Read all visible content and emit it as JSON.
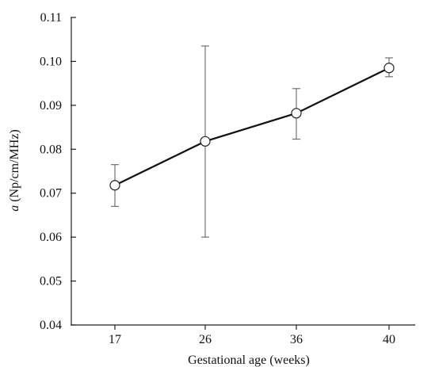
{
  "chart_data": {
    "type": "line",
    "title": "",
    "xlabel": "Gestational age (weeks)",
    "ylabel_italic": "a",
    "ylabel_rest": " (Np/cm/MHz)",
    "categories": [
      "17",
      "26",
      "36",
      "40"
    ],
    "series": [
      {
        "values": [
          0.0718,
          0.0818,
          0.0882,
          0.0985
        ],
        "error_low": [
          0.067,
          0.06,
          0.0823,
          0.0965
        ],
        "error_high": [
          0.0765,
          0.1035,
          0.0938,
          0.1008
        ]
      }
    ],
    "ylim": [
      0.04,
      0.11
    ],
    "yticks": [
      "0.04",
      "0.05",
      "0.06",
      "0.07",
      "0.08",
      "0.09",
      "0.10",
      "0.11"
    ],
    "grid": false,
    "legend": "none",
    "colors": {
      "line": "#111111",
      "error_bar": "#666666",
      "axis": "#222222",
      "marker_fill": "#ffffff"
    }
  }
}
